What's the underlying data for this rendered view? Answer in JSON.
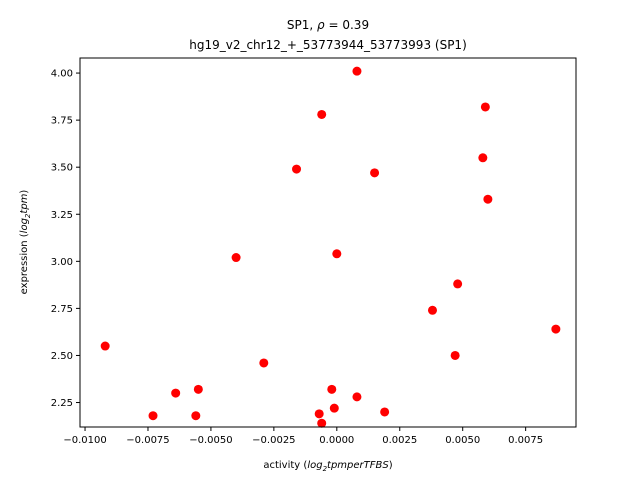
{
  "chart_data": {
    "type": "scatter",
    "title_line1_prefix": "SP1, ",
    "title_line1_rho": "ρ",
    "title_line1_value": " = 0.39",
    "title_line2": "hg19_v2_chr12_+_53773944_53773993 (SP1)",
    "xlabel_prefix": "activity (",
    "xlabel_italic": "log",
    "xlabel_sub": "2",
    "xlabel_italic2": "tpmperTFBS",
    "xlabel_suffix": ")",
    "ylabel_prefix": "expression (",
    "ylabel_italic": "log",
    "ylabel_sub": "2",
    "ylabel_italic2": "tpm",
    "ylabel_suffix": ")",
    "xlim": [
      -0.0102,
      0.0095
    ],
    "ylim": [
      2.12,
      4.08
    ],
    "xticks": [
      -0.01,
      -0.0075,
      -0.005,
      -0.0025,
      0.0,
      0.0025,
      0.005,
      0.0075
    ],
    "xtick_labels": [
      "−0.0100",
      "−0.0075",
      "−0.0050",
      "−0.0025",
      "0.0000",
      "0.0025",
      "0.0050",
      "0.0075"
    ],
    "yticks": [
      2.25,
      2.5,
      2.75,
      3.0,
      3.25,
      3.5,
      3.75,
      4.0
    ],
    "ytick_labels": [
      "2.25",
      "2.50",
      "2.75",
      "3.00",
      "3.25",
      "3.50",
      "3.75",
      "4.00"
    ],
    "grid": false,
    "marker_color": "#ff0000",
    "points": [
      {
        "x": 0.0008,
        "y": 4.01
      },
      {
        "x": -0.0006,
        "y": 3.78
      },
      {
        "x": 0.0059,
        "y": 3.82
      },
      {
        "x": -0.0016,
        "y": 3.49
      },
      {
        "x": 0.0015,
        "y": 3.47
      },
      {
        "x": 0.0058,
        "y": 3.55
      },
      {
        "x": 0.006,
        "y": 3.33
      },
      {
        "x": -0.004,
        "y": 3.02
      },
      {
        "x": 0.0,
        "y": 3.04
      },
      {
        "x": 0.0048,
        "y": 2.88
      },
      {
        "x": 0.0038,
        "y": 2.74
      },
      {
        "x": 0.0087,
        "y": 2.64
      },
      {
        "x": -0.0092,
        "y": 2.55
      },
      {
        "x": 0.0047,
        "y": 2.5
      },
      {
        "x": -0.0029,
        "y": 2.46
      },
      {
        "x": -0.0064,
        "y": 2.3
      },
      {
        "x": -0.0055,
        "y": 2.32
      },
      {
        "x": -0.0002,
        "y": 2.32
      },
      {
        "x": 0.0008,
        "y": 2.28
      },
      {
        "x": -0.0073,
        "y": 2.18
      },
      {
        "x": -0.0056,
        "y": 2.18
      },
      {
        "x": -0.0007,
        "y": 2.19
      },
      {
        "x": -0.0001,
        "y": 2.22
      },
      {
        "x": 0.0019,
        "y": 2.2
      },
      {
        "x": -0.0006,
        "y": 2.14
      }
    ]
  }
}
